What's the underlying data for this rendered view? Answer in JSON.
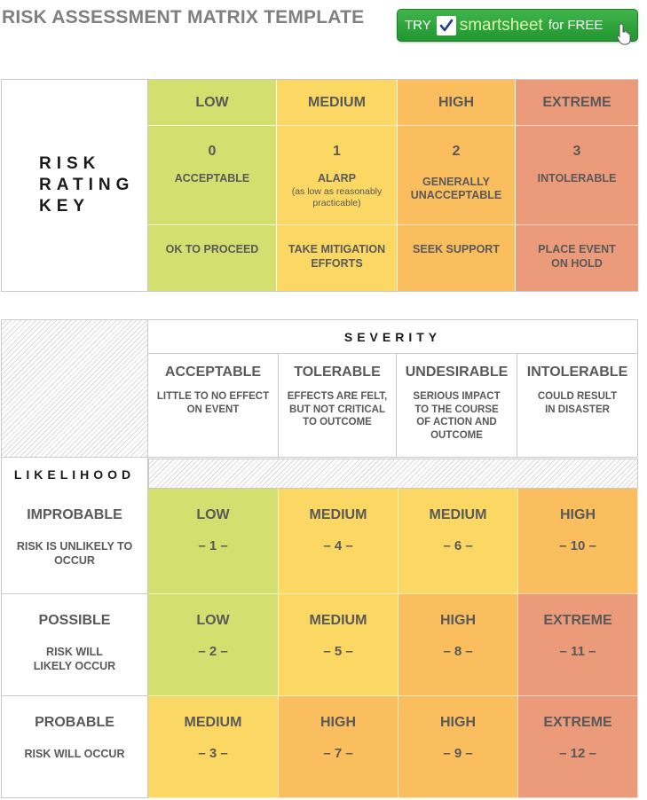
{
  "title": "RISK ASSESSMENT MATRIX TEMPLATE",
  "cta": {
    "try": "TRY",
    "brand": "smartsheet",
    "free": "for FREE",
    "icon": "cursor-hand-icon",
    "color": "#2ea33a"
  },
  "colors": {
    "low": "#d3e06f",
    "medium": "#fbd863",
    "high": "#fbbe5e",
    "extreme": "#ec9b7a"
  },
  "key": {
    "label_lines": [
      "RISK",
      "RATING",
      "KEY"
    ],
    "levels": [
      {
        "name": "LOW",
        "number": "0",
        "desc": "ACCEPTABLE",
        "sub": "",
        "action": "OK TO PROCEED",
        "color": "#d3e06f"
      },
      {
        "name": "MEDIUM",
        "number": "1",
        "desc": "ALARP",
        "sub": "(as low as reasonably practicable)",
        "action": "TAKE MITIGATION EFFORTS",
        "color": "#fbd863"
      },
      {
        "name": "HIGH",
        "number": "2",
        "desc": "GENERALLY UNACCEPTABLE",
        "sub": "",
        "action": "SEEK SUPPORT",
        "color": "#fbbe5e"
      },
      {
        "name": "EXTREME",
        "number": "3",
        "desc": "INTOLERABLE",
        "sub": "",
        "action": "PLACE EVENT ON HOLD",
        "color": "#ec9b7a"
      }
    ]
  },
  "matrix": {
    "severity_label": "SEVERITY",
    "likelihood_label": "LIKELIHOOD",
    "severity": [
      {
        "name": "ACCEPTABLE",
        "desc": "LITTLE TO NO EFFECT ON EVENT"
      },
      {
        "name": "TOLERABLE",
        "desc": "EFFECTS ARE FELT, BUT NOT CRITICAL TO OUTCOME"
      },
      {
        "name": "UNDESIRABLE",
        "desc": "SERIOUS IMPACT TO THE COURSE OF ACTION AND OUTCOME"
      },
      {
        "name": "INTOLERABLE",
        "desc": "COULD RESULT IN DISASTER"
      }
    ],
    "rows": [
      {
        "name": "IMPROBABLE",
        "desc": "RISK IS UNLIKELY TO OCCUR",
        "cells": [
          {
            "level": "LOW",
            "num": "– 1 –",
            "color": "#d3e06f"
          },
          {
            "level": "MEDIUM",
            "num": "– 4 –",
            "color": "#fbd863"
          },
          {
            "level": "MEDIUM",
            "num": "– 6 –",
            "color": "#fbd863"
          },
          {
            "level": "HIGH",
            "num": "– 10 –",
            "color": "#fbbe5e"
          }
        ]
      },
      {
        "name": "POSSIBLE",
        "desc": "RISK WILL LIKELY OCCUR",
        "cells": [
          {
            "level": "LOW",
            "num": "– 2 –",
            "color": "#d3e06f"
          },
          {
            "level": "MEDIUM",
            "num": "– 5 –",
            "color": "#fbd863"
          },
          {
            "level": "HIGH",
            "num": "– 8 –",
            "color": "#fbbe5e"
          },
          {
            "level": "EXTREME",
            "num": "– 11 –",
            "color": "#ec9b7a"
          }
        ]
      },
      {
        "name": "PROBABLE",
        "desc": "RISK WILL OCCUR",
        "cells": [
          {
            "level": "MEDIUM",
            "num": "– 3 –",
            "color": "#fbd863"
          },
          {
            "level": "HIGH",
            "num": "– 7 –",
            "color": "#fbbe5e"
          },
          {
            "level": "HIGH",
            "num": "– 9 –",
            "color": "#fbbe5e"
          },
          {
            "level": "EXTREME",
            "num": "– 12 –",
            "color": "#ec9b7a"
          }
        ]
      }
    ]
  }
}
